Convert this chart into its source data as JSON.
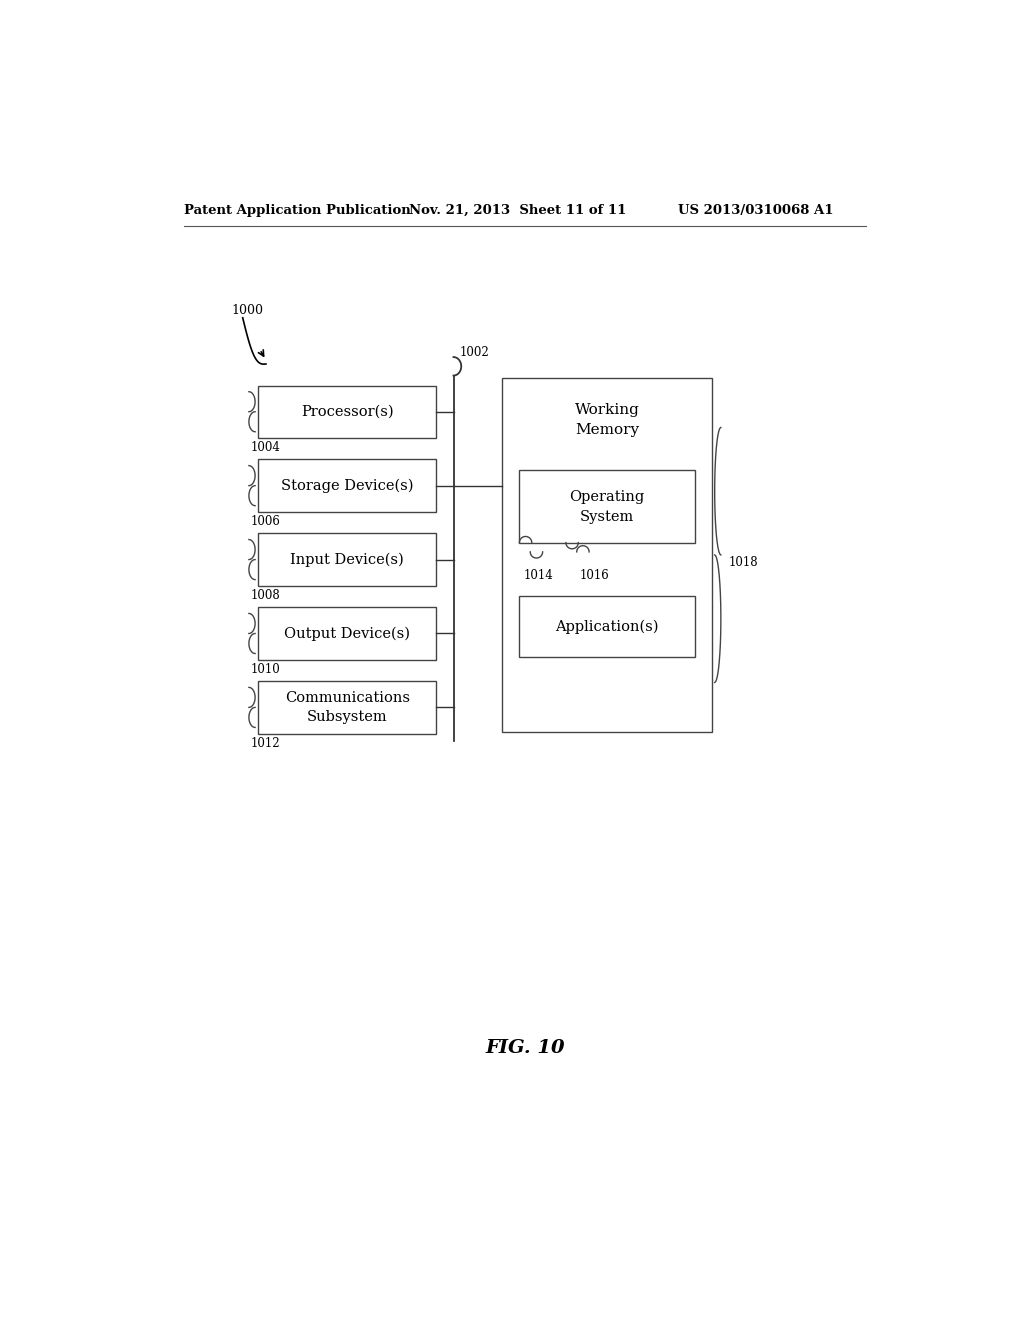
{
  "header_left": "Patent Application Publication",
  "header_mid": "Nov. 21, 2013  Sheet 11 of 11",
  "header_right": "US 2013/0310068 A1",
  "figure_label": "FIG. 10",
  "background_color": "#ffffff",
  "text_color": "#000000",
  "box_edge_color": "#444444",
  "line_color": "#333333",
  "main_label": "1000",
  "bus_label": "1002",
  "left_boxes": [
    {
      "label": "Processor(s)",
      "ref": "1004"
    },
    {
      "label": "Storage Device(s)",
      "ref": "1006"
    },
    {
      "label": "Input Device(s)",
      "ref": "1008"
    },
    {
      "label": "Output Device(s)",
      "ref": "1010"
    },
    {
      "label": "Communications\nSubsystem",
      "ref": "1012"
    }
  ],
  "working_memory_label": "Working\nMemory",
  "working_memory_ref": "1018",
  "os_box_label": "Operating\nSystem",
  "os_box_ref": "1014",
  "app_box_label": "Application(s)",
  "app_box_ref": "1016"
}
